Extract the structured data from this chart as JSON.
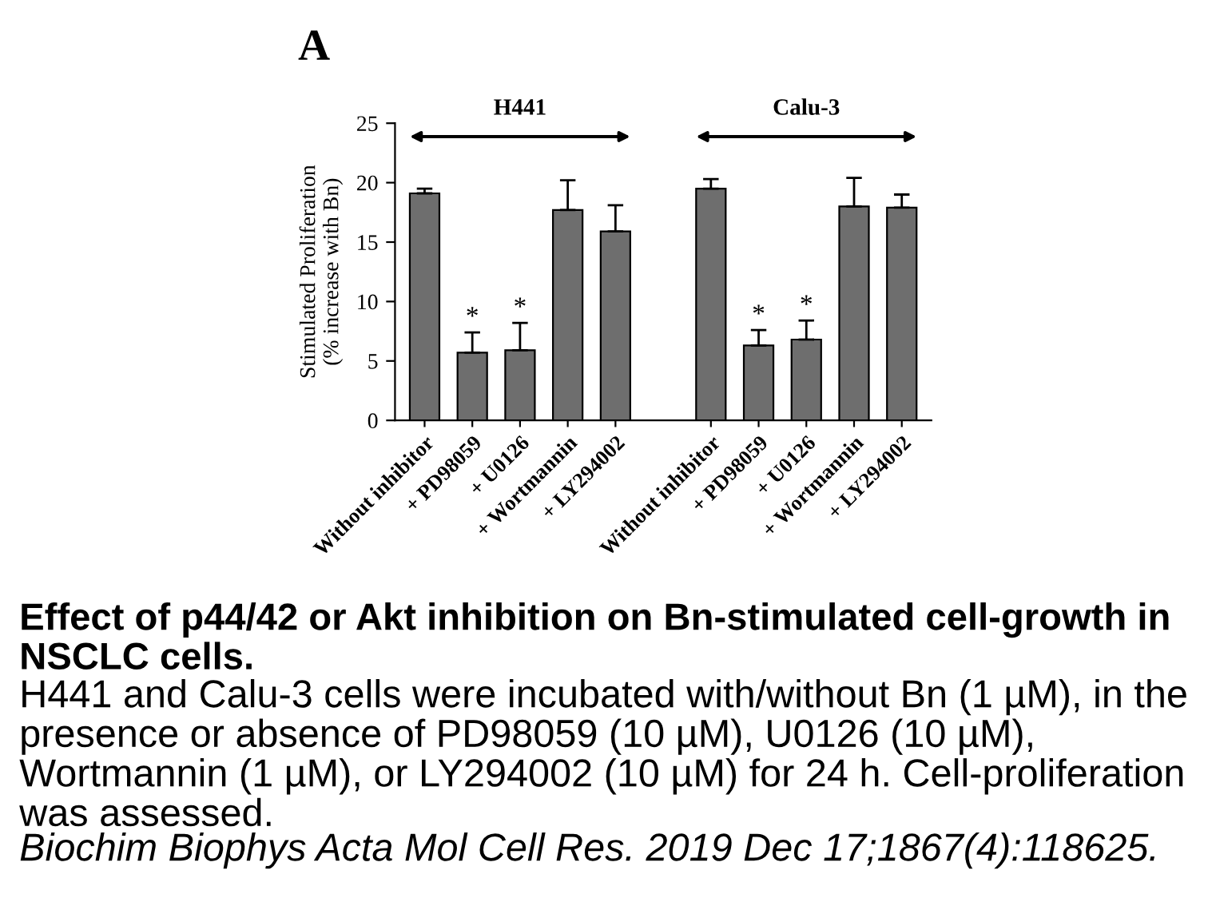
{
  "chart_data": {
    "type": "bar",
    "title": "Effect of p44/42 or Akt inhibition on Bn-stimulated cell-growth in NSCLC cells.",
    "subtitle": "H441 and Calu-3 cells were incubated with/without Bn (1 µM), in the presence or absence of PD98059 (10 µM), U0126 (10 µM), Wortmannin (1 µM), or LY294002 (10 µM) for 24 h. Cell-proliferation was assessed.",
    "ylabel": "Stimulated Proliferation\n(% increase with Bn)",
    "annotations": [
      "A",
      "H441",
      "Calu-3",
      "Biochim Biophys Acta Mol Cell Res. 2019 Dec 17;1867(4):118625."
    ],
    "categories": [
      "Without inhibitor",
      "+ PD98059",
      "+ U0126",
      "+ Wortmannin",
      "+ LY294002",
      null,
      "Without inhibitor",
      "+ PD98059",
      "+ U0126",
      "+ Wortmannin",
      "+ LY294002"
    ],
    "color": "#6e6e6e",
    "values": [
      19.1,
      5.7,
      5.9,
      17.7,
      15.9,
      null,
      19.5,
      6.3,
      6.8,
      18.0,
      17.9
    ],
    "errors": [
      [
        19.1,
        19.5
      ],
      [
        5.7,
        7.4
      ],
      [
        5.9,
        8.2
      ],
      [
        17.7,
        20.2
      ],
      [
        15.9,
        18.1
      ],
      null,
      [
        19.5,
        20.3
      ],
      [
        6.3,
        7.6
      ],
      [
        6.8,
        8.4
      ],
      [
        18.0,
        20.4
      ],
      [
        17.9,
        19.0
      ]
    ],
    "value_labels": [
      null,
      "*",
      "*",
      null,
      null,
      null,
      null,
      "*",
      "*",
      null,
      null
    ],
    "ylim": [
      0,
      25
    ],
    "yticks": [
      0,
      5,
      10,
      15,
      20,
      25
    ]
  }
}
